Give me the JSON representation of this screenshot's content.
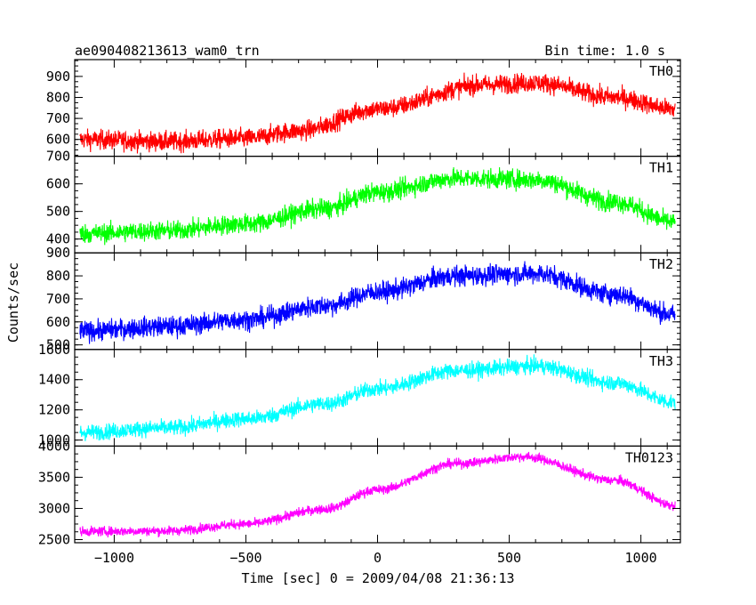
{
  "chart_data": {
    "type": "line",
    "title_left": "ae090408213613_wam0_trn",
    "title_right": "Bin time: 1.0 s",
    "xlabel": "Time [sec] 0 = 2009/04/08 21:36:13",
    "ylabel": "Counts/sec",
    "xlim": [
      -1150,
      1150
    ],
    "x_ticks": [
      -1000,
      -500,
      0,
      500,
      1000
    ],
    "x_tick_labels": [
      "−1000",
      "−500",
      "0",
      "500",
      "1000"
    ],
    "x_data_range": [
      -1130,
      1130
    ],
    "panels": [
      {
        "name": "TH0",
        "color": "#ff0000",
        "ylim": [
          520,
          980
        ],
        "y_ticks": [
          600,
          700,
          800,
          900
        ],
        "y_tick_labels": [
          "600",
          "700",
          "800",
          "900"
        ],
        "top_tick_label": "",
        "curve": {
          "x": [
            -1130,
            -800,
            -500,
            -300,
            0,
            400,
            600,
            900,
            1130
          ],
          "y": [
            600,
            590,
            605,
            640,
            745,
            860,
            870,
            800,
            745
          ]
        },
        "noise": 42
      },
      {
        "name": "TH1",
        "color": "#00ff00",
        "ylim": [
          350,
          700
        ],
        "y_ticks": [
          400,
          500,
          600
        ],
        "y_tick_labels": [
          "400",
          "500",
          "600"
        ],
        "top_tick_label": "700",
        "curve": {
          "x": [
            -1130,
            -800,
            -500,
            -200,
            0,
            300,
            600,
            900,
            1130
          ],
          "y": [
            420,
            430,
            455,
            510,
            570,
            620,
            615,
            535,
            460
          ]
        },
        "noise": 32
      },
      {
        "name": "TH2",
        "color": "#0000ff",
        "ylim": [
          480,
          900
        ],
        "y_ticks": [
          500,
          600,
          700,
          800
        ],
        "y_tick_labels": [
          "500",
          "600",
          "700",
          "800"
        ],
        "top_tick_label": "900",
        "curve": {
          "x": [
            -1130,
            -800,
            -500,
            -200,
            0,
            300,
            600,
            900,
            1130
          ],
          "y": [
            560,
            580,
            610,
            670,
            730,
            800,
            810,
            720,
            630
          ]
        },
        "noise": 40
      },
      {
        "name": "TH3",
        "color": "#00ffff",
        "ylim": [
          960,
          1600
        ],
        "y_ticks": [
          1000,
          1200,
          1400
        ],
        "y_tick_labels": [
          "1000",
          "1200",
          "1400"
        ],
        "top_tick_label": "1600",
        "curve": {
          "x": [
            -1130,
            -800,
            -500,
            -200,
            0,
            300,
            600,
            900,
            1130
          ],
          "y": [
            1050,
            1080,
            1140,
            1240,
            1340,
            1460,
            1490,
            1380,
            1250
          ]
        },
        "noise": 48
      },
      {
        "name": "TH0123",
        "color": "#ff00ff",
        "ylim": [
          2450,
          4000
        ],
        "y_ticks": [
          2500,
          3000,
          3500
        ],
        "y_tick_labels": [
          "2500",
          "3000",
          "3500"
        ],
        "top_tick_label": "4000",
        "curve": {
          "x": [
            -1130,
            -800,
            -500,
            -200,
            0,
            300,
            550,
            900,
            1130
          ],
          "y": [
            2630,
            2640,
            2750,
            2990,
            3300,
            3720,
            3830,
            3450,
            3050
          ]
        },
        "noise": 70
      }
    ]
  }
}
